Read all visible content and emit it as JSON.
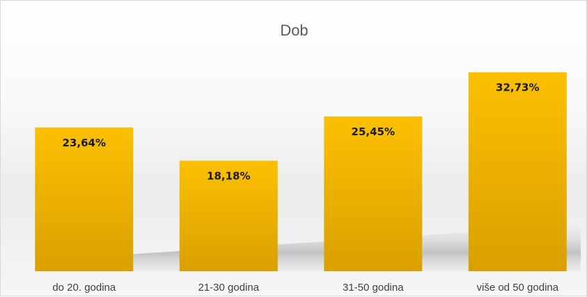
{
  "chart_data": {
    "type": "bar",
    "title": "Dob",
    "xlabel": "",
    "ylabel": "",
    "categories": [
      "do 20. godina",
      "21-30 godina",
      "31-50 godina",
      "više od 50 godina"
    ],
    "values": [
      23.64,
      18.18,
      25.45,
      32.73
    ],
    "data_labels": [
      "23,64%",
      "18,18%",
      "25,45%",
      "32,73%"
    ],
    "ylim": [
      0,
      35
    ],
    "grid": false,
    "legend": "none",
    "bar_color_top": "#fcc000",
    "bar_color_bottom": "#d9a000"
  }
}
